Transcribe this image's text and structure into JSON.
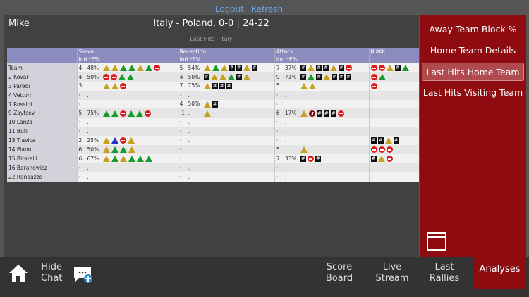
{
  "top_links": {
    "logout": "Logout",
    "refresh": "Refresh"
  },
  "header": {
    "user": "Mike",
    "match": "Italy - Poland, 0-0 | 24-22",
    "subtitle": "Last Hits - Italy"
  },
  "table": {
    "columns": [
      {
        "label": "Serve",
        "sub": [
          "Ind",
          "*E%"
        ]
      },
      {
        "label": "Reception",
        "sub": [
          "Ind",
          "*E%"
        ]
      },
      {
        "label": "Attack",
        "sub": [
          "Ind",
          "*E%"
        ]
      },
      {
        "label": "Block",
        "sub": []
      }
    ],
    "icon_legend": {
      "g": "green-triangle",
      "y": "yellow-triangle",
      "b": "blue-triangle",
      "r": "red-minus-circle",
      "d": "dark-red-slash-circle",
      "h": "black-hash-square"
    },
    "rows": [
      {
        "name": "Team",
        "serve": [
          "4",
          "48%",
          "yyggygr"
        ],
        "reception": [
          "5",
          "54%",
          "ygyhhyh"
        ],
        "attack": [
          "7",
          "37%",
          "hyhhyhr"
        ],
        "block": "rryhg"
      },
      {
        "name": "2 Kovar",
        "serve": [
          "4",
          "50%",
          "rrgg"
        ],
        "reception": [
          "4",
          "50%",
          "hyyghy"
        ],
        "attack": [
          "9",
          "71%",
          "hghyhhh"
        ],
        "block": "rg"
      },
      {
        "name": "3 Parodi",
        "serve": [
          "3",
          ".",
          "yyr"
        ],
        "reception": [
          "7",
          "75%",
          "yhhh"
        ],
        "attack": [
          "5",
          ".",
          "yy"
        ],
        "block": "r"
      },
      {
        "name": "4 Vettori",
        "serve": [
          "·",
          ".",
          ""
        ],
        "reception": [
          "·",
          ".",
          ""
        ],
        "attack": [
          "·",
          ".",
          ""
        ],
        "block": ""
      },
      {
        "name": "7 Rossini",
        "serve": [
          "·",
          ".",
          ""
        ],
        "reception": [
          "4",
          "50%",
          "yh"
        ],
        "attack": [
          "·",
          ".",
          ""
        ],
        "block": ""
      },
      {
        "name": "9 Zaytsev",
        "serve": [
          "5",
          "75%",
          "ggrggr"
        ],
        "reception": [
          "-1",
          ".",
          "y"
        ],
        "attack": [
          "6",
          "17%",
          "ydhhhr"
        ],
        "block": ""
      },
      {
        "name": "10 Lanza",
        "serve": [
          "·",
          ".",
          ""
        ],
        "reception": [
          "·",
          ".",
          ""
        ],
        "attack": [
          "·",
          ".",
          ""
        ],
        "block": ""
      },
      {
        "name": "11 Buti",
        "serve": [
          "·",
          ".",
          ""
        ],
        "reception": [
          "·",
          ".",
          ""
        ],
        "attack": [
          "·",
          ".",
          ""
        ],
        "block": ""
      },
      {
        "name": "13 Travica",
        "serve": [
          "2",
          "25%",
          "ybry"
        ],
        "reception": [
          "·",
          ".",
          ""
        ],
        "attack": [
          "·",
          ".",
          ""
        ],
        "block": "hhyh"
      },
      {
        "name": "14 Piano",
        "serve": [
          "6",
          "50%",
          "yggy"
        ],
        "reception": [
          "·",
          ".",
          ""
        ],
        "attack": [
          "5",
          ".",
          "y"
        ],
        "block": "rrr"
      },
      {
        "name": "15 Birarelli",
        "serve": [
          "6",
          "67%",
          "ygyggg"
        ],
        "reception": [
          "·",
          ".",
          ""
        ],
        "attack": [
          "7",
          "33%",
          "hrh"
        ],
        "block": "hyr"
      },
      {
        "name": "16 Baranowicz",
        "serve": [
          "·",
          ".",
          ""
        ],
        "reception": [
          "·",
          ".",
          ""
        ],
        "attack": [
          "·",
          ".",
          ""
        ],
        "block": ""
      },
      {
        "name": "22 Randazzo",
        "serve": [
          "·",
          ".",
          ""
        ],
        "reception": [
          "·",
          ".",
          ""
        ],
        "attack": [
          "·",
          ".",
          ""
        ],
        "block": ""
      }
    ]
  },
  "side_menu": {
    "items": [
      "Away Team Block %",
      "Home Team Details",
      "Last Hits Home Team",
      "Last Hits Visiting Team"
    ],
    "selected": "Last Hits Home Team"
  },
  "bottom_bar": {
    "hide_chat": [
      "Hide",
      "Chat"
    ],
    "score_board": [
      "Score",
      "Board"
    ],
    "live_stream": [
      "Live",
      "Stream"
    ],
    "last_rallies": [
      "Last",
      "Rallies"
    ],
    "analyses": "Analyses"
  },
  "colors": {
    "accent_red": "#8e0b10",
    "header_purple": "#8b8bbd",
    "link_blue": "#6fa3e8"
  }
}
